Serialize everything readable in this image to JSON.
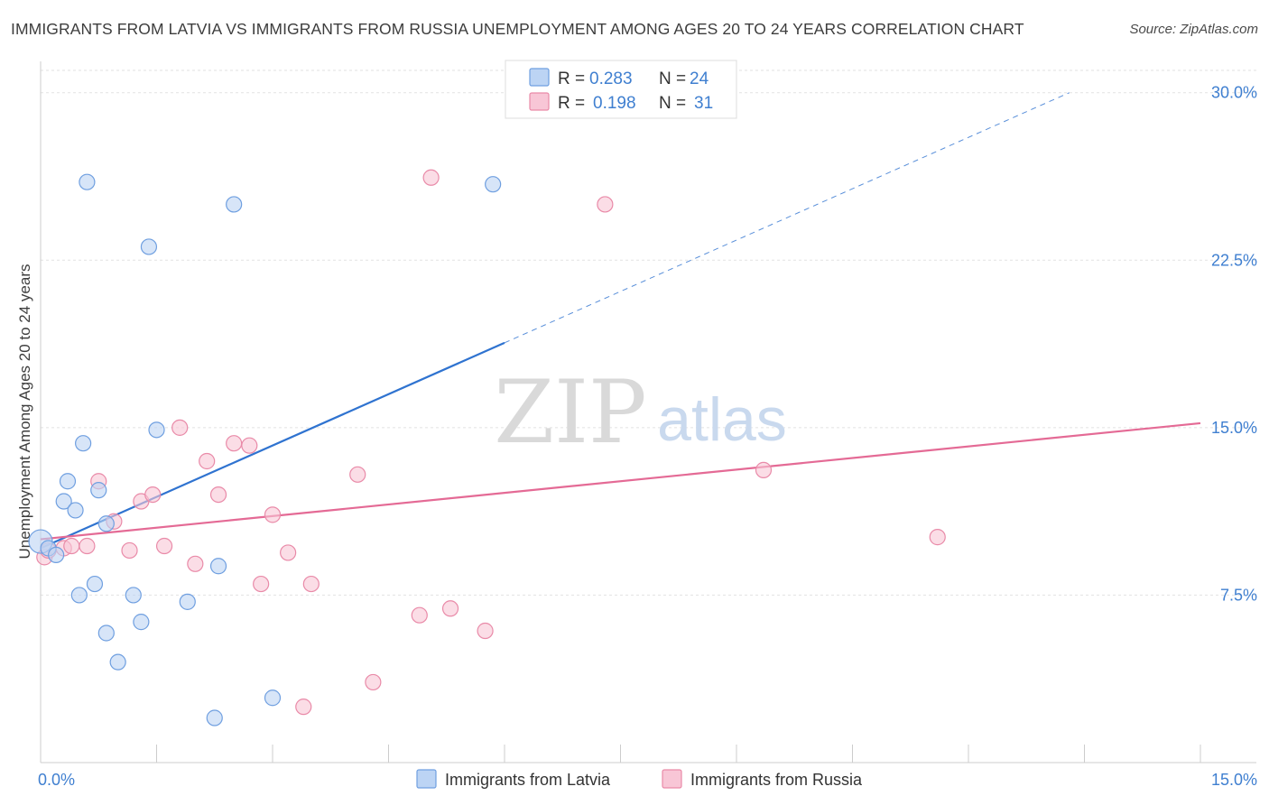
{
  "header": {
    "title": "IMMIGRANTS FROM LATVIA VS IMMIGRANTS FROM RUSSIA UNEMPLOYMENT AMONG AGES 20 TO 24 YEARS CORRELATION CHART",
    "source": "Source: ZipAtlas.com"
  },
  "watermark": {
    "zip": "ZIP",
    "atlas": "atlas"
  },
  "chart_data": {
    "type": "scatter",
    "title": "IMMIGRANTS FROM LATVIA VS IMMIGRANTS FROM RUSSIA UNEMPLOYMENT AMONG AGES 20 TO 24 YEARS CORRELATION CHART",
    "xlabel": "",
    "ylabel": "Unemployment Among Ages 20 to 24 years",
    "xlim": [
      0,
      15
    ],
    "ylim": [
      0,
      31
    ],
    "x_ticks": [
      {
        "value": 0,
        "label": "0.0%"
      },
      {
        "value": 15,
        "label": "15.0%"
      }
    ],
    "y_ticks": [
      {
        "value": 7.5,
        "label": "7.5%"
      },
      {
        "value": 15,
        "label": "15.0%"
      },
      {
        "value": 22.5,
        "label": "22.5%"
      },
      {
        "value": 30,
        "label": "30.0%"
      }
    ],
    "grid": true,
    "legend_placement": "top-center",
    "series": [
      {
        "name": "Immigrants from Latvia",
        "r_label": "R =",
        "r_value": "0.283",
        "n_label": "N =",
        "n_value": "24",
        "color": "#6f9fe0",
        "fill": "#bcd4f4",
        "line_color": "#2f73d0",
        "trend": {
          "x0": 0.0,
          "y0": 9.6,
          "x1": 6.0,
          "y1": 18.8,
          "dash_to_x": 15.0
        },
        "points": [
          [
            0.0,
            9.9
          ],
          [
            0.1,
            9.6
          ],
          [
            0.2,
            9.3
          ],
          [
            0.3,
            11.7
          ],
          [
            0.35,
            12.6
          ],
          [
            0.45,
            11.3
          ],
          [
            0.5,
            7.5
          ],
          [
            0.55,
            14.3
          ],
          [
            0.6,
            26.0
          ],
          [
            0.7,
            8.0
          ],
          [
            0.75,
            12.2
          ],
          [
            0.85,
            10.7
          ],
          [
            0.85,
            5.8
          ],
          [
            1.0,
            4.5
          ],
          [
            1.2,
            7.5
          ],
          [
            1.3,
            6.3
          ],
          [
            1.4,
            23.1
          ],
          [
            1.5,
            14.9
          ],
          [
            1.9,
            7.2
          ],
          [
            2.25,
            2.0
          ],
          [
            2.3,
            8.8
          ],
          [
            2.5,
            25.0
          ],
          [
            3.0,
            2.9
          ],
          [
            5.85,
            25.9
          ]
        ]
      },
      {
        "name": "Immigrants from Russia",
        "r_label": "R =",
        "r_value": "0.198",
        "n_label": "N =",
        "n_value": "31",
        "color": "#e98aa8",
        "fill": "#f8c6d6",
        "line_color": "#e46a95",
        "trend": {
          "x0": 0.0,
          "y0": 10.0,
          "x1": 15.0,
          "y1": 15.2,
          "dash_to_x": 15.0
        },
        "points": [
          [
            0.05,
            9.2
          ],
          [
            0.1,
            9.5
          ],
          [
            0.3,
            9.6
          ],
          [
            0.4,
            9.7
          ],
          [
            0.6,
            9.7
          ],
          [
            0.75,
            12.6
          ],
          [
            0.95,
            10.8
          ],
          [
            1.15,
            9.5
          ],
          [
            1.3,
            11.7
          ],
          [
            1.45,
            12.0
          ],
          [
            1.6,
            9.7
          ],
          [
            1.8,
            15.0
          ],
          [
            2.0,
            8.9
          ],
          [
            2.15,
            13.5
          ],
          [
            2.3,
            12.0
          ],
          [
            2.5,
            14.3
          ],
          [
            2.7,
            14.2
          ],
          [
            2.85,
            8.0
          ],
          [
            3.0,
            11.1
          ],
          [
            3.2,
            9.4
          ],
          [
            3.4,
            2.5
          ],
          [
            3.5,
            8.0
          ],
          [
            4.1,
            12.9
          ],
          [
            4.3,
            3.6
          ],
          [
            4.9,
            6.6
          ],
          [
            5.05,
            26.2
          ],
          [
            5.3,
            6.9
          ],
          [
            5.75,
            5.9
          ],
          [
            7.3,
            25.0
          ],
          [
            9.35,
            13.1
          ],
          [
            11.6,
            10.1
          ]
        ]
      }
    ]
  }
}
